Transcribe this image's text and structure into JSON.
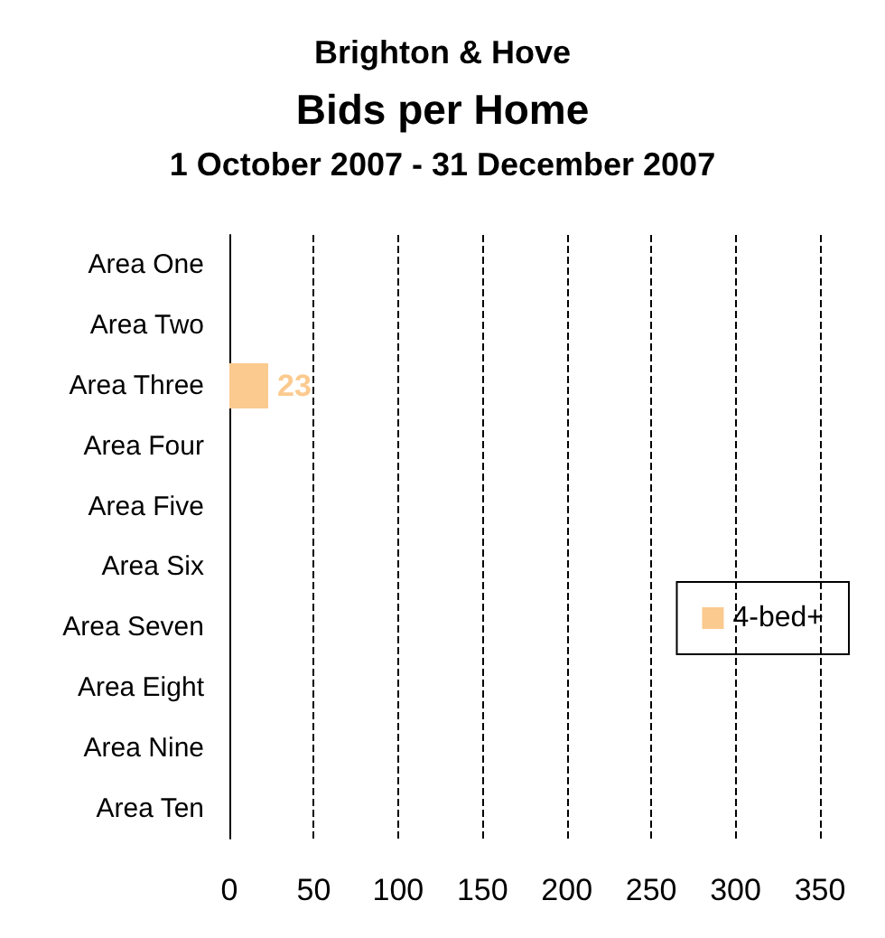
{
  "chart_data": {
    "type": "bar",
    "orientation": "horizontal",
    "title": "Bids per Home",
    "subtitle": "1 October 2007 - 31 December 2007",
    "annotations": [
      "Brighton & Hove"
    ],
    "categories": [
      "Area One",
      "Area Two",
      "Area Three",
      "Area Four",
      "Area Five",
      "Area Six",
      "Area Seven",
      "Area Eight",
      "Area Nine",
      "Area Ten"
    ],
    "series": [
      {
        "name": "4-bed+",
        "color": "#fbca8f",
        "values": [
          null,
          null,
          23,
          null,
          null,
          null,
          null,
          null,
          null,
          null
        ]
      }
    ],
    "xlim": [
      0,
      350
    ],
    "xticks": [
      0,
      50,
      100,
      150,
      200,
      250,
      300,
      350
    ],
    "data_labels": true,
    "grid": "x",
    "legend": "right"
  }
}
